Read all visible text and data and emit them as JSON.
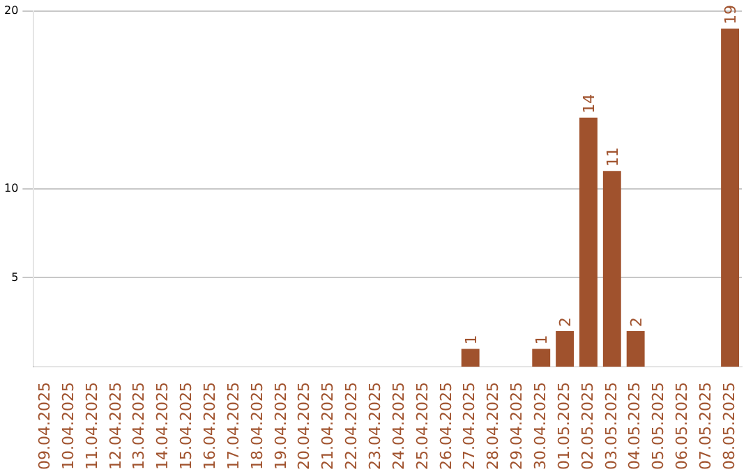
{
  "chart_data": {
    "type": "bar",
    "categories": [
      "09.04.2025",
      "10.04.2025",
      "11.04.2025",
      "12.04.2025",
      "13.04.2025",
      "14.04.2025",
      "15.04.2025",
      "16.04.2025",
      "17.04.2025",
      "18.04.2025",
      "19.04.2025",
      "20.04.2025",
      "21.04.2025",
      "22.04.2025",
      "23.04.2025",
      "24.04.2025",
      "25.04.2025",
      "26.04.2025",
      "27.04.2025",
      "28.04.2025",
      "29.04.2025",
      "30.04.2025",
      "01.05.2025",
      "02.05.2025",
      "03.05.2025",
      "04.05.2025",
      "05.05.2025",
      "06.05.2025",
      "07.05.2025",
      "08.05.2025"
    ],
    "values": [
      0,
      0,
      0,
      0,
      0,
      0,
      0,
      0,
      0,
      0,
      0,
      0,
      0,
      0,
      0,
      0,
      0,
      0,
      1,
      0,
      0,
      1,
      2,
      14,
      11,
      2,
      0,
      0,
      0,
      19
    ],
    "value_labels": [
      null,
      null,
      null,
      null,
      null,
      null,
      null,
      null,
      null,
      null,
      null,
      null,
      null,
      null,
      null,
      null,
      null,
      null,
      "1",
      null,
      null,
      "1",
      "2",
      "14",
      "11",
      "2",
      null,
      null,
      null,
      "19"
    ],
    "color": "#a0522d",
    "ylim": [
      0,
      20
    ],
    "yticks": [
      5,
      10,
      20
    ],
    "grid": "y"
  }
}
